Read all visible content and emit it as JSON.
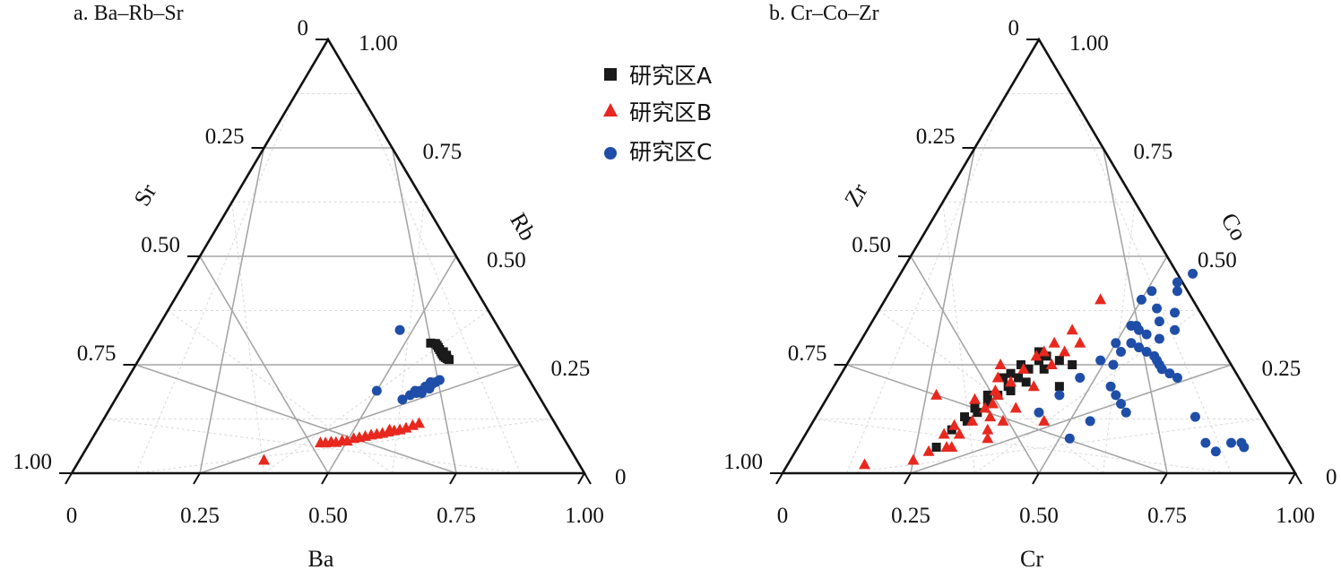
{
  "legend": [
    {
      "name": "研究区A",
      "marker": "square",
      "color": "#1a1a1a"
    },
    {
      "name": "研究区B",
      "marker": "triangle",
      "color": "#e8281e"
    },
    {
      "name": "研究区C",
      "marker": "circle",
      "color": "#1f4ea8"
    }
  ],
  "chart_data": [
    {
      "type": "scatter",
      "title": "a. Ba–Rb–Sr",
      "axes": {
        "bottom": "Ba",
        "right": "Rb",
        "left": "Sr"
      },
      "ticks": [
        "0",
        "0.25",
        "0.50",
        "0.75",
        "1.00"
      ],
      "left_ticks": [
        "0",
        "0.25",
        "0.50",
        "0.75",
        "1.00"
      ],
      "right_ticks": [
        "1.00",
        "0.75",
        "0.50",
        "0.25",
        "0"
      ],
      "grid": true,
      "series": [
        {
          "name": "研究区A",
          "points": [
            [
              0.55,
              0.3
            ],
            [
              0.56,
              0.299
            ],
            [
              0.565,
              0.295
            ],
            [
              0.57,
              0.29
            ],
            [
              0.575,
              0.285
            ],
            [
              0.58,
              0.28
            ],
            [
              0.585,
              0.275
            ],
            [
              0.59,
              0.27
            ],
            [
              0.595,
              0.267
            ],
            [
              0.6,
              0.264
            ],
            [
              0.605,
              0.262
            ],
            [
              0.595,
              0.272
            ],
            [
              0.585,
              0.28
            ]
          ]
        },
        {
          "name": "研究区B",
          "points": [
            [
              0.36,
              0.03
            ],
            [
              0.45,
              0.07
            ],
            [
              0.47,
              0.072
            ],
            [
              0.49,
              0.075
            ],
            [
              0.51,
              0.08
            ],
            [
              0.53,
              0.085
            ],
            [
              0.55,
              0.09
            ],
            [
              0.57,
              0.095
            ],
            [
              0.59,
              0.1
            ],
            [
              0.6,
              0.104
            ],
            [
              0.61,
              0.11
            ],
            [
              0.62,
              0.115
            ],
            [
              0.5,
              0.074
            ],
            [
              0.48,
              0.071
            ],
            [
              0.52,
              0.082
            ],
            [
              0.54,
              0.088
            ],
            [
              0.56,
              0.092
            ],
            [
              0.58,
              0.098
            ],
            [
              0.46,
              0.07
            ],
            [
              0.57,
              0.1
            ]
          ]
        },
        {
          "name": "研究区C",
          "points": [
            [
              0.475,
              0.33
            ],
            [
              0.5,
              0.19
            ],
            [
              0.56,
              0.17
            ],
            [
              0.57,
              0.18
            ],
            [
              0.58,
              0.185
            ],
            [
              0.585,
              0.19
            ],
            [
              0.59,
              0.2
            ],
            [
              0.595,
              0.21
            ],
            [
              0.6,
              0.205
            ],
            [
              0.605,
              0.21
            ],
            [
              0.61,
              0.215
            ],
            [
              0.6,
              0.195
            ],
            [
              0.59,
              0.185
            ],
            [
              0.575,
              0.19
            ]
          ]
        }
      ]
    },
    {
      "type": "scatter",
      "title": "b. Cr–Co–Zr",
      "axes": {
        "bottom": "Cr",
        "right": "Co",
        "left": "Zr"
      },
      "ticks": [
        "0",
        "0.25",
        "0.50",
        "0.75",
        "1.00"
      ],
      "left_ticks": [
        "0",
        "0.25",
        "0.50",
        "0.75",
        "1.00"
      ],
      "right_ticks": [
        "1.00",
        "0.75",
        "0.50",
        "0.25",
        "0"
      ],
      "grid": true,
      "series": [
        {
          "name": "研究区A",
          "points": [
            [
              0.28,
              0.1
            ],
            [
              0.3,
              0.12
            ],
            [
              0.31,
              0.14
            ],
            [
              0.32,
              0.16
            ],
            [
              0.33,
              0.18
            ],
            [
              0.34,
              0.2
            ],
            [
              0.35,
              0.22
            ],
            [
              0.36,
              0.24
            ],
            [
              0.37,
              0.26
            ],
            [
              0.38,
              0.27
            ],
            [
              0.36,
              0.28
            ],
            [
              0.34,
              0.25
            ],
            [
              0.33,
              0.23
            ],
            [
              0.35,
              0.19
            ],
            [
              0.37,
              0.21
            ],
            [
              0.39,
              0.24
            ],
            [
              0.41,
              0.26
            ],
            [
              0.44,
              0.25
            ],
            [
              0.44,
              0.2
            ],
            [
              0.3,
              0.15
            ],
            [
              0.31,
              0.18
            ],
            [
              0.29,
              0.13
            ],
            [
              0.32,
              0.22
            ],
            [
              0.27,
              0.06
            ]
          ]
        },
        {
          "name": "研究区B",
          "points": [
            [
              0.24,
              0.03
            ],
            [
              0.29,
              0.06
            ],
            [
              0.3,
              0.09
            ],
            [
              0.31,
              0.12
            ],
            [
              0.32,
              0.15
            ],
            [
              0.33,
              0.18
            ],
            [
              0.34,
              0.21
            ],
            [
              0.35,
              0.24
            ],
            [
              0.36,
              0.27
            ],
            [
              0.37,
              0.28
            ],
            [
              0.38,
              0.3
            ],
            [
              0.4,
              0.33
            ],
            [
              0.42,
              0.4
            ],
            [
              0.3,
              0.25
            ],
            [
              0.31,
              0.22
            ],
            [
              0.32,
              0.19
            ],
            [
              0.33,
              0.16
            ],
            [
              0.34,
              0.13
            ],
            [
              0.35,
              0.1
            ],
            [
              0.36,
              0.08
            ],
            [
              0.37,
              0.12
            ],
            [
              0.38,
              0.15
            ],
            [
              0.39,
              0.2
            ],
            [
              0.4,
              0.25
            ],
            [
              0.41,
              0.28
            ],
            [
              0.43,
              0.3
            ],
            [
              0.45,
              0.12
            ],
            [
              0.28,
              0.11
            ],
            [
              0.27,
              0.09
            ],
            [
              0.29,
              0.17
            ],
            [
              0.26,
              0.05
            ],
            [
              0.21,
              0.18
            ],
            [
              0.15,
              0.02
            ],
            [
              0.3,
              0.06
            ]
          ]
        },
        {
          "name": "研究区C",
          "points": [
            [
              0.43,
              0.14
            ],
            [
              0.45,
              0.18
            ],
            [
              0.47,
              0.22
            ],
            [
              0.49,
              0.26
            ],
            [
              0.5,
              0.3
            ],
            [
              0.52,
              0.34
            ],
            [
              0.54,
              0.38
            ],
            [
              0.56,
              0.42
            ],
            [
              0.57,
              0.46
            ],
            [
              0.55,
              0.44
            ],
            [
              0.58,
              0.37
            ],
            [
              0.53,
              0.3
            ],
            [
              0.55,
              0.29
            ],
            [
              0.57,
              0.28
            ],
            [
              0.59,
              0.27
            ],
            [
              0.6,
              0.26
            ],
            [
              0.61,
              0.25
            ],
            [
              0.62,
              0.24
            ],
            [
              0.64,
              0.23
            ],
            [
              0.66,
              0.22
            ],
            [
              0.52,
              0.25
            ],
            [
              0.54,
              0.2
            ],
            [
              0.56,
              0.18
            ],
            [
              0.58,
              0.16
            ],
            [
              0.6,
              0.14
            ],
            [
              0.54,
              0.12
            ],
            [
              0.52,
              0.08
            ],
            [
              0.74,
              0.13
            ],
            [
              0.79,
              0.07
            ],
            [
              0.82,
              0.05
            ],
            [
              0.84,
              0.07
            ],
            [
              0.86,
              0.07
            ],
            [
              0.87,
              0.06
            ],
            [
              0.51,
              0.34
            ],
            [
              0.53,
              0.33
            ],
            [
              0.55,
              0.32
            ],
            [
              0.56,
              0.35
            ],
            [
              0.58,
              0.31
            ],
            [
              0.6,
              0.33
            ],
            [
              0.52,
              0.28
            ],
            [
              0.5,
              0.4
            ],
            [
              0.51,
              0.42
            ]
          ]
        }
      ]
    }
  ]
}
